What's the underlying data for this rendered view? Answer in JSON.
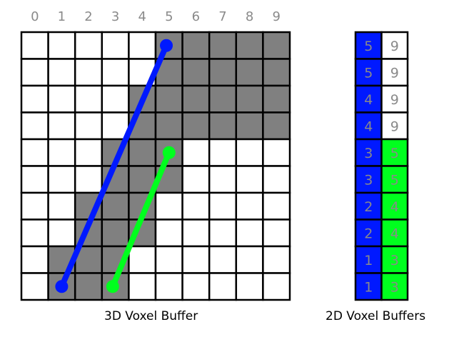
{
  "voxel_buffer_3d": {
    "caption": "3D Voxel Buffer",
    "column_labels": [
      "0",
      "1",
      "2",
      "3",
      "4",
      "5",
      "6",
      "7",
      "8",
      "9"
    ],
    "rows": 10,
    "columns": 10,
    "filled_color": "#808080",
    "empty_color": "#ffffff",
    "filled_ranges_top_to_bottom": [
      [
        5,
        9
      ],
      [
        5,
        9
      ],
      [
        4,
        9
      ],
      [
        4,
        9
      ],
      [
        3,
        5
      ],
      [
        3,
        5
      ],
      [
        2,
        4
      ],
      [
        2,
        4
      ],
      [
        1,
        3
      ],
      [
        1,
        3
      ]
    ],
    "lines": [
      {
        "color": "#0019ff",
        "from_col": 1.5,
        "from_row": 9.5,
        "to_col": 5.4,
        "to_row": 0.5
      },
      {
        "color": "#00ff1e",
        "from_col": 3.4,
        "from_row": 9.5,
        "to_col": 5.5,
        "to_row": 4.5
      }
    ]
  },
  "voxel_buffers_2d": {
    "caption": "2D Voxel Buffers",
    "text_color": "#8a8a8a",
    "start_color": "#0019ff",
    "end_color": "#00ff1e",
    "start_values": [
      "5",
      "5",
      "4",
      "4",
      "3",
      "3",
      "2",
      "2",
      "1",
      "1"
    ],
    "end_values": [
      "9",
      "9",
      "9",
      "9",
      "5",
      "5",
      "4",
      "4",
      "3",
      "3"
    ],
    "end_highlighted": [
      false,
      false,
      false,
      false,
      true,
      true,
      true,
      true,
      true,
      true
    ]
  }
}
